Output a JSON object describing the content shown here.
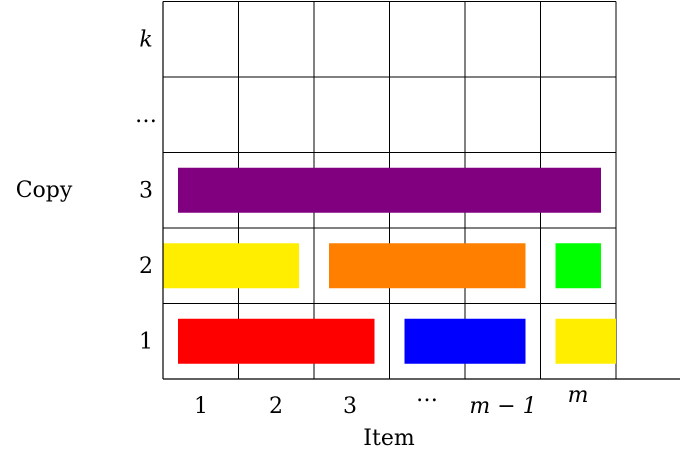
{
  "diagram": {
    "y_axis_title": "Copy",
    "x_axis_title": "Item",
    "row_labels": [
      {
        "text": "1",
        "italic": false
      },
      {
        "text": "2",
        "italic": false
      },
      {
        "text": "3",
        "italic": false
      },
      {
        "text": "…",
        "italic": false
      },
      {
        "text": "k",
        "italic": true
      }
    ],
    "col_labels": [
      {
        "text": "1",
        "italic": false
      },
      {
        "text": "2",
        "italic": false
      },
      {
        "text": "3",
        "italic": false
      },
      {
        "text": "…",
        "italic": false
      },
      {
        "text": "m − 1",
        "italic": true
      },
      {
        "text": "m",
        "italic": true
      }
    ],
    "bars": [
      {
        "name": "bar-red",
        "row": 1,
        "from_col": 1,
        "to_col": 3,
        "color": "#ff0000"
      },
      {
        "name": "bar-blue",
        "row": 1,
        "from_col": 4,
        "to_col": 5,
        "color": "#0000ff"
      },
      {
        "name": "bar-yellow-row1",
        "row": 1,
        "from_col": 6,
        "to_col": 6,
        "color": "#ffee00"
      },
      {
        "name": "bar-yellow-row2",
        "row": 2,
        "from_col": 1,
        "to_col": 2,
        "color": "#ffee00"
      },
      {
        "name": "bar-orange",
        "row": 2,
        "from_col": 3,
        "to_col": 5,
        "color": "#ff8000"
      },
      {
        "name": "bar-green",
        "row": 2,
        "from_col": 6,
        "to_col": 6,
        "color": "#00ff00"
      },
      {
        "name": "bar-purple",
        "row": 3,
        "from_col": 1,
        "to_col": 6,
        "color": "#800080"
      }
    ]
  }
}
